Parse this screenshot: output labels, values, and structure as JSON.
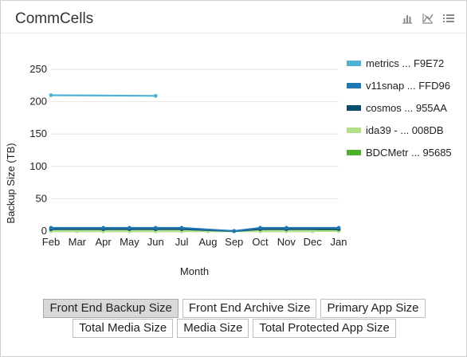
{
  "widget": {
    "title": "CommCells"
  },
  "icons": [
    "bar-chart-icon",
    "line-chart-icon",
    "list-icon"
  ],
  "chart_data": {
    "type": "line",
    "xlabel": "Month",
    "ylabel": "Backup Size (TB)",
    "ylim": [
      0,
      250
    ],
    "yticks": [
      "0",
      "50",
      "100",
      "150",
      "200",
      "250"
    ],
    "categories": [
      "Feb",
      "Mar",
      "Apr",
      "May",
      "Jun",
      "Jul",
      "Aug",
      "Sep",
      "Oct",
      "Nov",
      "Dec",
      "Jan"
    ],
    "grid": true,
    "legend_position": "right",
    "series": [
      {
        "name": "metrics ... F9E72",
        "color": "#4eb3d3",
        "values": [
          210,
          null,
          null,
          null,
          209,
          null,
          null,
          null,
          null,
          null,
          null,
          null
        ]
      },
      {
        "name": "v11snap ... FFD96",
        "color": "#1f78b4",
        "values": [
          5,
          null,
          5,
          5,
          5,
          5,
          null,
          0,
          5,
          5,
          null,
          5
        ]
      },
      {
        "name": "cosmos ... 955AA",
        "color": "#0b4f6c",
        "values": [
          3,
          null,
          3,
          3,
          3,
          3,
          null,
          0,
          3,
          3,
          null,
          3
        ]
      },
      {
        "name": "ida39 - ... 008DB",
        "color": "#b2df8a",
        "values": [
          0,
          0,
          0,
          0,
          0,
          0,
          0,
          0,
          0,
          0,
          0,
          0
        ]
      },
      {
        "name": "BDCMetr ... 95685",
        "color": "#4daf2a",
        "values": [
          0,
          0,
          0,
          0,
          0,
          0,
          0,
          0,
          0,
          0,
          0,
          2
        ]
      }
    ]
  },
  "buttons": {
    "row1": [
      "Front End Backup Size",
      "Front End Archive Size",
      "Primary App Size"
    ],
    "row2": [
      "Total Media Size",
      "Media Size",
      "Total Protected App Size"
    ],
    "active": "Front End Backup Size"
  }
}
